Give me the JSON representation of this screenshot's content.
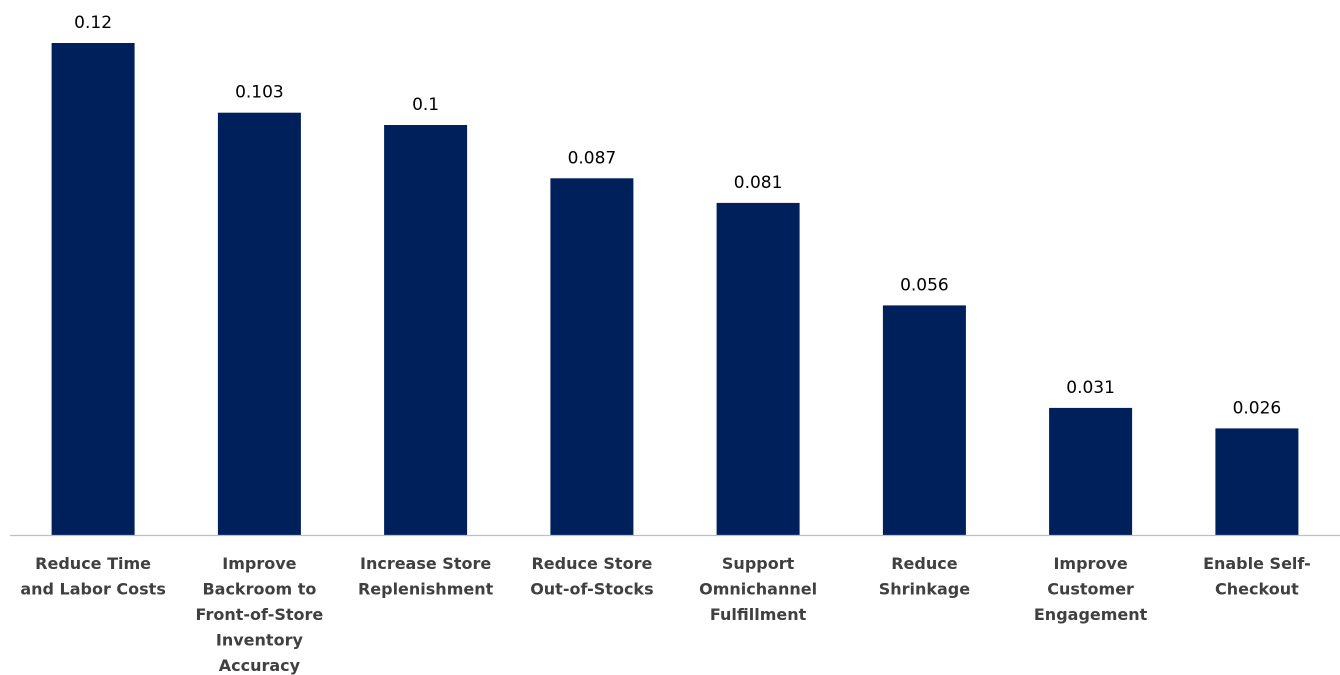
{
  "chart_data": {
    "type": "bar",
    "title": "",
    "xlabel": "",
    "ylabel": "",
    "categories": [
      [
        "Reduce Time",
        "and Labor Costs"
      ],
      [
        "Improve",
        "Backroom to",
        "Front-of-Store",
        "Inventory",
        "Accuracy"
      ],
      [
        "Increase Store",
        "Replenishment"
      ],
      [
        "Reduce Store",
        "Out-of-Stocks"
      ],
      [
        "Support",
        "Omnichannel",
        "Fulfillment"
      ],
      [
        "Reduce",
        "Shrinkage"
      ],
      [
        "Improve",
        "Customer",
        "Engagement"
      ],
      [
        "Enable Self-",
        "Checkout"
      ]
    ],
    "values": [
      0.12,
      0.103,
      0.1,
      0.087,
      0.081,
      0.056,
      0.031,
      0.026
    ],
    "value_labels": [
      "0.12",
      "0.103",
      "0.1",
      "0.087",
      "0.081",
      "0.056",
      "0.031",
      "0.026"
    ],
    "ylim": [
      0,
      0.12
    ],
    "grid": false,
    "legend": "none",
    "bar_color": "#00205B",
    "axis_color": "#BFBFBF"
  }
}
